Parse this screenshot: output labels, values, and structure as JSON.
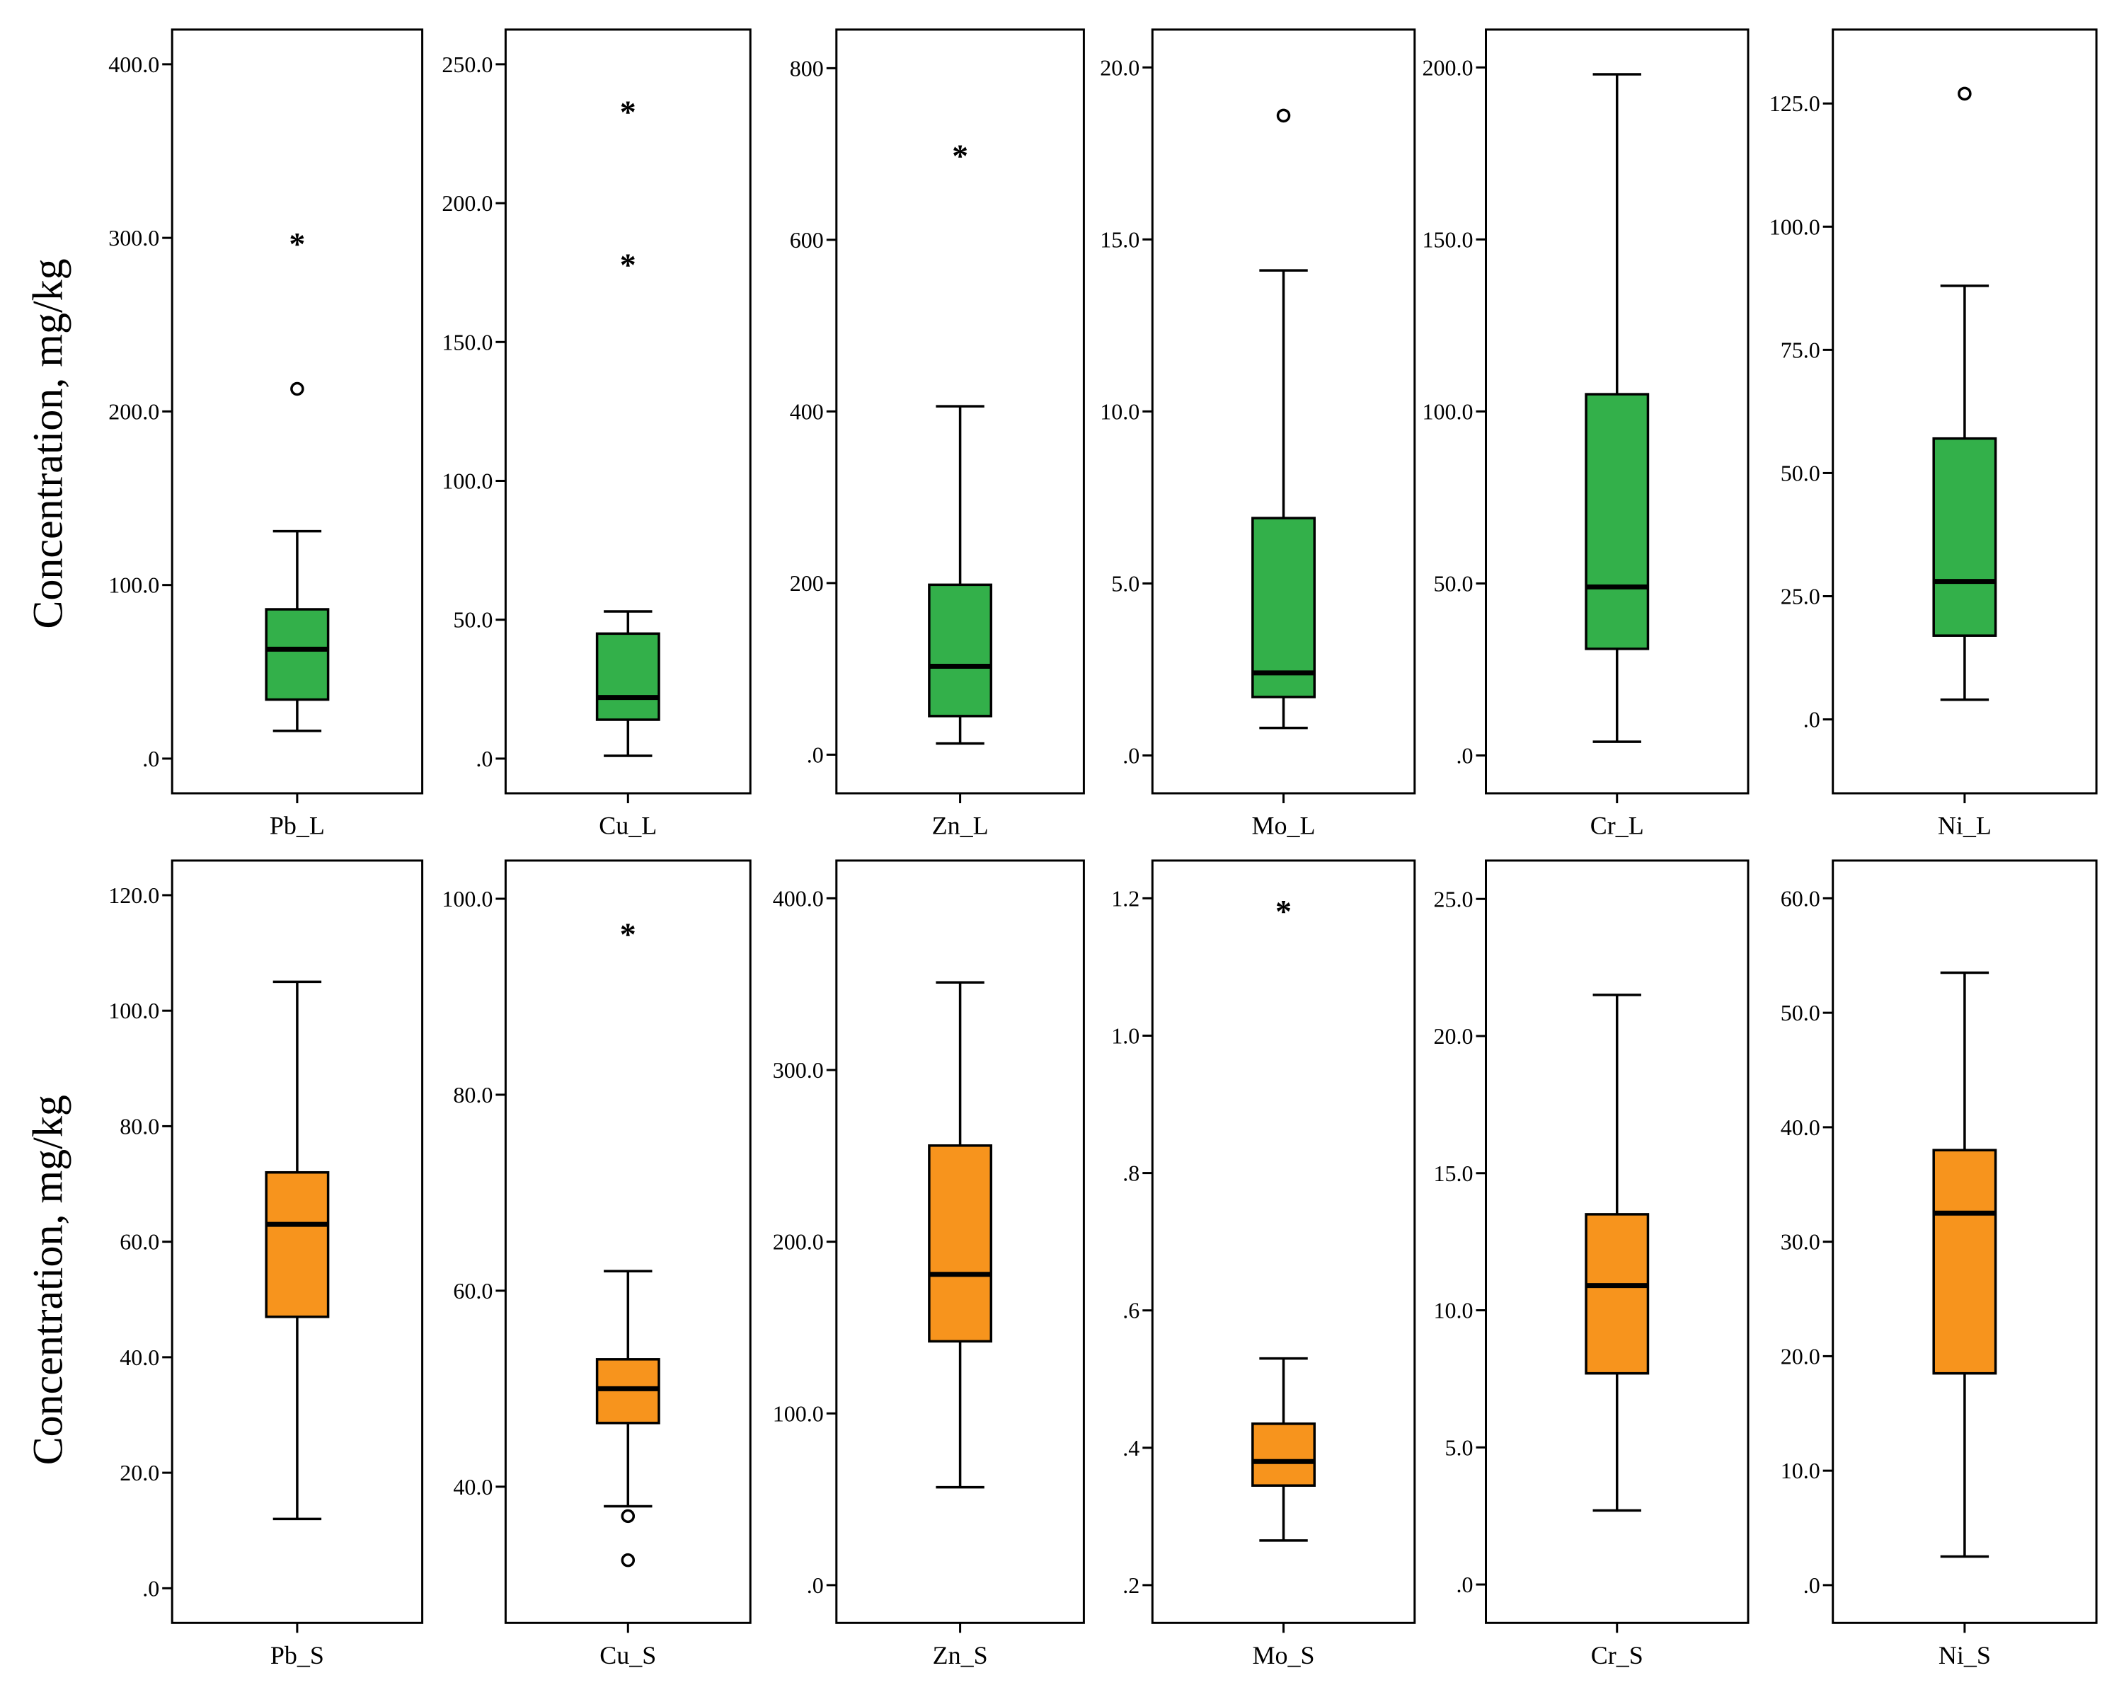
{
  "chart_data": [
    {
      "type": "boxplot",
      "row": "leaf",
      "ylabel": "Concentration, mg/kg",
      "colors": {
        "box": "#33b04a"
      },
      "panels": [
        {
          "category": "Pb_L",
          "ylim": [
            -20,
            420
          ],
          "ticks": [
            "0",
            "100.0",
            "200.0",
            "300.0",
            "400.0"
          ],
          "tick_values": [
            0,
            100,
            200,
            300,
            400
          ],
          "whisker_low": 16,
          "q1": 34,
          "median": 63,
          "q3": 86,
          "whisker_high": 131,
          "outliers": [
            213
          ],
          "extremes": [
            300
          ]
        },
        {
          "category": "Cu_L",
          "ylim": [
            -12.5,
            262.5
          ],
          "ticks": [
            "0",
            "50.0",
            "100.0",
            "150.0",
            "200.0",
            "250.0"
          ],
          "tick_values": [
            0,
            50,
            100,
            150,
            200,
            250
          ],
          "whisker_low": 1,
          "q1": 14,
          "median": 22,
          "q3": 45,
          "whisker_high": 53,
          "outliers": [],
          "extremes": [
            180,
            235
          ]
        },
        {
          "category": "Zn_L",
          "ylim": [
            -45,
            845
          ],
          "ticks": [
            "0",
            "200",
            "400",
            "600",
            "800"
          ],
          "tick_values": [
            0,
            200,
            400,
            600,
            800
          ],
          "whisker_low": 13,
          "q1": 45,
          "median": 103,
          "q3": 198,
          "whisker_high": 406,
          "outliers": [],
          "extremes": [
            705
          ]
        },
        {
          "category": "Mo_L",
          "ylim": [
            -1.1,
            21.1
          ],
          "ticks": [
            "0",
            "5.0",
            "10.0",
            "15.0",
            "20.0"
          ],
          "tick_values": [
            0,
            5,
            10,
            15,
            20
          ],
          "whisker_low": 0.8,
          "q1": 1.7,
          "median": 2.4,
          "q3": 6.9,
          "whisker_high": 14.1,
          "outliers": [
            18.6
          ],
          "extremes": []
        },
        {
          "category": "Cr_L",
          "ylim": [
            -11,
            211
          ],
          "ticks": [
            "0",
            "50.0",
            "100.0",
            "150.0",
            "200.0"
          ],
          "tick_values": [
            0,
            50,
            100,
            150,
            200
          ],
          "whisker_low": 4,
          "q1": 31,
          "median": 49,
          "q3": 105,
          "whisker_high": 198,
          "outliers": [],
          "extremes": []
        },
        {
          "category": "Ni_L",
          "ylim": [
            -15,
            140
          ],
          "ticks": [
            "0",
            "25.0",
            "50.0",
            "75.0",
            "100.0",
            "125.0"
          ],
          "tick_values": [
            0,
            25,
            50,
            75,
            100,
            125
          ],
          "whisker_low": 4,
          "q1": 17,
          "median": 28,
          "q3": 57,
          "whisker_high": 88,
          "outliers": [
            127
          ],
          "extremes": []
        }
      ]
    },
    {
      "type": "boxplot",
      "row": "soil",
      "ylabel": "Concentration, mg/kg",
      "colors": {
        "box": "#f7941d"
      },
      "panels": [
        {
          "category": "Pb_S",
          "ylim": [
            -6,
            126
          ],
          "ticks": [
            "0",
            "20.0",
            "40.0",
            "60.0",
            "80.0",
            "100.0",
            "120.0"
          ],
          "tick_values": [
            0,
            20,
            40,
            60,
            80,
            100,
            120
          ],
          "whisker_low": 12,
          "q1": 47,
          "median": 63,
          "q3": 72,
          "whisker_high": 105,
          "outliers": [],
          "extremes": []
        },
        {
          "category": "Cu_S",
          "ylim": [
            26.1,
            103.9
          ],
          "ticks": [
            "40.0",
            "60.0",
            "80.0",
            "100.0"
          ],
          "tick_values": [
            40,
            60,
            80,
            100
          ],
          "whisker_low": 38,
          "q1": 46.5,
          "median": 50,
          "q3": 53,
          "whisker_high": 62,
          "outliers": [
            37,
            32.5
          ],
          "extremes": [
            97
          ]
        },
        {
          "category": "Zn_S",
          "ylim": [
            -22,
            422
          ],
          "ticks": [
            "0",
            "100.0",
            "200.0",
            "300.0",
            "400.0"
          ],
          "tick_values": [
            0,
            100,
            200,
            300,
            400
          ],
          "whisker_low": 57,
          "q1": 142,
          "median": 181,
          "q3": 256,
          "whisker_high": 351,
          "outliers": [],
          "extremes": []
        },
        {
          "category": "Mo_S",
          "ylim": [
            0.145,
            1.255
          ],
          "ticks": [
            ".2",
            ".4",
            ".6",
            ".8",
            "1.0",
            "1.2"
          ],
          "tick_values": [
            0.2,
            0.4,
            0.6,
            0.8,
            1.0,
            1.2
          ],
          "whisker_low": 0.265,
          "q1": 0.345,
          "median": 0.38,
          "q3": 0.435,
          "whisker_high": 0.53,
          "outliers": [],
          "extremes": [
            1.19
          ]
        },
        {
          "category": "Cr_S",
          "ylim": [
            -1.4,
            26.4
          ],
          "ticks": [
            "0",
            "5.0",
            "10.0",
            "15.0",
            "20.0",
            "25.0"
          ],
          "tick_values": [
            0,
            5,
            10,
            15,
            20,
            25
          ],
          "whisker_low": 2.7,
          "q1": 7.7,
          "median": 10.9,
          "q3": 13.5,
          "whisker_high": 21.5,
          "outliers": [],
          "extremes": []
        },
        {
          "category": "Ni_S",
          "ylim": [
            -3.3,
            63.3
          ],
          "ticks": [
            "0",
            "10.0",
            "20.0",
            "30.0",
            "40.0",
            "50.0",
            "60.0"
          ],
          "tick_values": [
            0,
            10,
            20,
            30,
            40,
            50,
            60
          ],
          "whisker_low": 2.5,
          "q1": 18.5,
          "median": 32.5,
          "q3": 38,
          "whisker_high": 53.5,
          "outliers": [],
          "extremes": []
        }
      ]
    }
  ]
}
